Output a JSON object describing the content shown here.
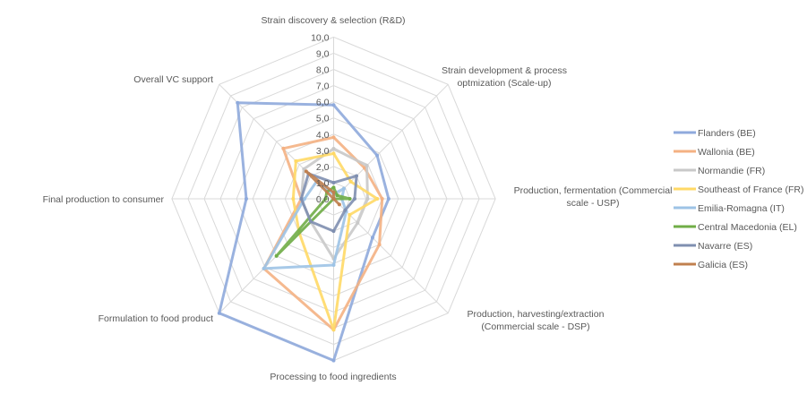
{
  "chart_data": {
    "type": "radar",
    "title": "",
    "axes": [
      [
        "Strain discovery & selection (R&D)"
      ],
      [
        "Strain development & process",
        "optmization (Scale-up)"
      ],
      [
        "Production, fermentation (Commercial",
        "scale - USP)"
      ],
      [
        "Production, harvesting/extraction",
        "(Commercial scale - DSP)"
      ],
      [
        "Processing to food ingredients"
      ],
      [
        "Formulation to food product"
      ],
      [
        "Final production to consumer"
      ],
      [
        "Overall VC support"
      ]
    ],
    "rlim": [
      0,
      10
    ],
    "ticks": [
      "0,0",
      "1,0",
      "2,0",
      "3,0",
      "4,0",
      "5,0",
      "6,0",
      "7,0",
      "8,0",
      "9,0",
      "10,0"
    ],
    "grid": true,
    "legend_position": "right",
    "series": [
      {
        "name": "Flanders (BE)",
        "color": "#8FAADC",
        "values": [
          5.8,
          3.8,
          3.4,
          3.4,
          10.0,
          10.0,
          5.4,
          8.4
        ]
      },
      {
        "name": "Wallonia (BE)",
        "color": "#F4B183",
        "values": [
          3.8,
          2.7,
          3.0,
          4.0,
          8.1,
          6.1,
          2.0,
          4.4
        ]
      },
      {
        "name": "Normandie (FR)",
        "color": "#C9C9C9",
        "values": [
          3.1,
          2.9,
          2.1,
          2.1,
          3.7,
          2.0,
          2.0,
          2.6
        ]
      },
      {
        "name": "Southeast of France (FR)",
        "color": "#FFD966",
        "values": [
          2.8,
          1.5,
          2.7,
          1.4,
          8.1,
          3.0,
          2.5,
          3.3
        ]
      },
      {
        "name": "Emilia-Romagna (IT)",
        "color": "#9DC3E6",
        "values": [
          0.3,
          0.9,
          0.5,
          1.1,
          4.1,
          6.1,
          1.8,
          1.5
        ]
      },
      {
        "name": "Central Macedonia (EL)",
        "color": "#70AD47",
        "values": [
          0.7,
          0.3,
          1.0,
          0.0,
          0.0,
          5.0,
          0.5,
          0.6
        ]
      },
      {
        "name": "Navarre (ES)",
        "color": "#7F8FB0",
        "values": [
          1.0,
          2.0,
          1.3,
          1.0,
          2.0,
          2.0,
          2.0,
          2.2
        ]
      },
      {
        "name": "Galicia (ES)",
        "color": "#C0804F",
        "values": [
          0.4,
          0.0,
          0.0,
          0.5,
          0.0,
          0.0,
          0.0,
          2.4
        ]
      }
    ]
  }
}
